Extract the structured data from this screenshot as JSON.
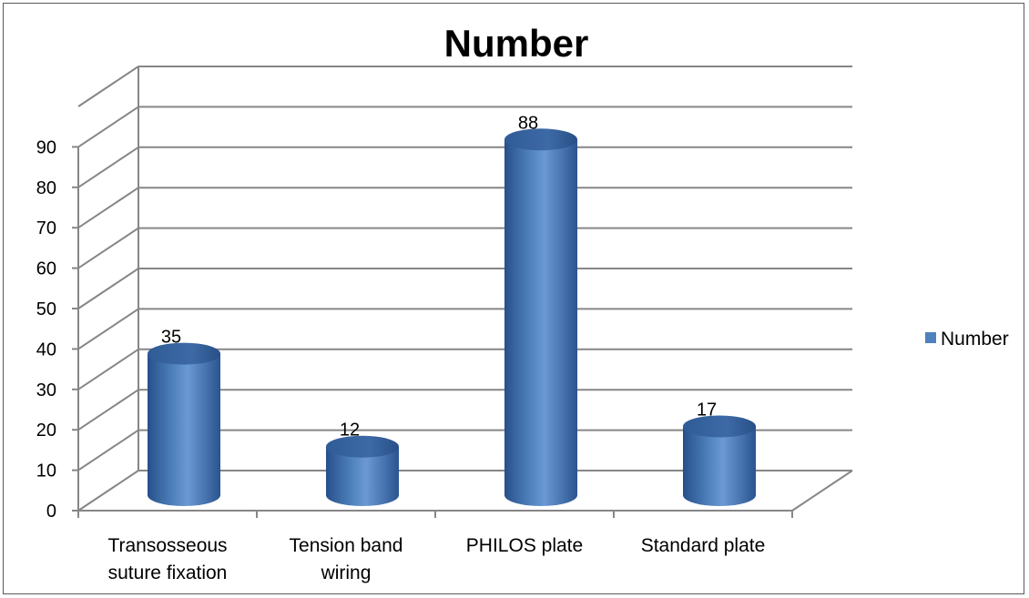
{
  "chart_data": {
    "type": "bar",
    "style": "3d-cylinder",
    "title": "Number",
    "categories": [
      [
        "Transosseous",
        "suture fixation"
      ],
      [
        "Tension band",
        "wiring"
      ],
      [
        "PHILOS plate"
      ],
      [
        "Standard plate"
      ]
    ],
    "series": [
      {
        "name": "Number",
        "values": [
          35,
          12,
          88,
          17
        ],
        "color": "#4f81bd"
      }
    ],
    "ylim": [
      0,
      90
    ],
    "yticks": [
      0,
      10,
      20,
      30,
      40,
      50,
      60,
      70,
      80,
      90
    ],
    "grid": true,
    "legend": "right",
    "data_labels": true
  }
}
